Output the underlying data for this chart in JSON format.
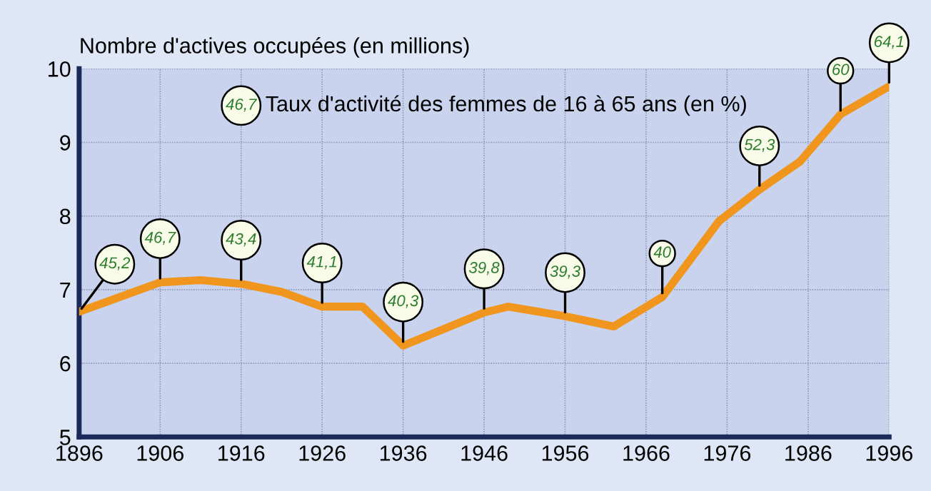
{
  "chart_data": {
    "type": "line",
    "ylabel": "Nombre d'actives occupées (en millions)",
    "x": [
      1896,
      1901,
      1906,
      1911,
      1916,
      1921,
      1926,
      1931,
      1936,
      1946,
      1949,
      1956,
      1962,
      1968,
      1975,
      1980,
      1985,
      1990,
      1996
    ],
    "series": [
      {
        "color": "#f0961e",
        "values": [
          6.7,
          6.9,
          7.1,
          7.13,
          7.08,
          6.97,
          6.77,
          6.77,
          6.24,
          6.69,
          6.77,
          6.64,
          6.5,
          6.9,
          7.93,
          8.36,
          8.74,
          9.38,
          9.76
        ]
      }
    ],
    "xlim": [
      1896,
      1996
    ],
    "xticks": [
      1896,
      1906,
      1916,
      1926,
      1936,
      1946,
      1956,
      1966,
      1976,
      1986,
      1996
    ],
    "ylim": [
      5,
      10
    ],
    "yticks": [
      5,
      6,
      7,
      8,
      9,
      10
    ],
    "grid": true,
    "marker": "none",
    "line_style": "solid",
    "legend": false,
    "annotations": [
      "46,7",
      "Taux d'activité des femmes de 16 à 65 ans (en %)",
      {
        "text": "45,2",
        "x": 1896,
        "y": 6.7
      },
      {
        "text": "46,7",
        "x": 1906,
        "y": 7.1
      },
      {
        "text": "43,4",
        "x": 1916,
        "y": 7.08
      },
      {
        "text": "41,1",
        "x": 1926,
        "y": 6.77
      },
      {
        "text": "40,3",
        "x": 1936,
        "y": 6.24
      },
      {
        "text": "39,8",
        "x": 1946,
        "y": 6.69
      },
      {
        "text": "39,3",
        "x": 1956,
        "y": 6.64
      },
      {
        "text": "40",
        "x": 1968,
        "y": 6.9
      },
      {
        "text": "52,3",
        "x": 1980,
        "y": 8.36
      },
      {
        "text": "60",
        "x": 1990,
        "y": 9.38
      },
      {
        "text": "64,1",
        "x": 1996,
        "y": 9.76
      }
    ]
  }
}
